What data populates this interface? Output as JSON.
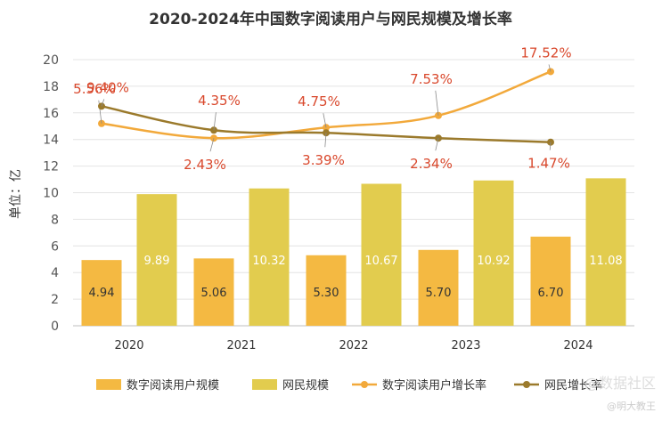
{
  "chart_data": {
    "type": "bar",
    "title": "2020-2024年中国数字阅读用户与网民规模及增长率",
    "ylabel": "单位：亿",
    "categories": [
      "2020",
      "2021",
      "2022",
      "2023",
      "2024"
    ],
    "ylim": [
      0,
      20
    ],
    "yticks": [
      0,
      2,
      4,
      6,
      8,
      10,
      12,
      14,
      16,
      18,
      20
    ],
    "grid": true,
    "legend_position": "bottom",
    "bar_series": [
      {
        "name": "数字阅读用户规模",
        "color": "#f4b942",
        "values": [
          4.94,
          5.06,
          5.3,
          5.7,
          6.7
        ],
        "labels": [
          "4.94",
          "5.06",
          "5.30",
          "5.70",
          "6.70"
        ],
        "label_color": "#333333"
      },
      {
        "name": "网民规模",
        "color": "#e2cc4e",
        "values": [
          9.89,
          10.32,
          10.67,
          10.92,
          11.08
        ],
        "labels": [
          "9.89",
          "10.32",
          "10.67",
          "10.92",
          "11.08"
        ],
        "label_color": "#ffffff"
      }
    ],
    "line_series": [
      {
        "name": "数字阅读用户增长率",
        "color": "#f2a93b",
        "plot_values": [
          15.2,
          14.1,
          14.9,
          15.8,
          19.1
        ],
        "labels": [
          "5.56%",
          "2.43%",
          "4.75%",
          "7.53%",
          "17.52%"
        ]
      },
      {
        "name": "网民增长率",
        "color": "#9b7a2c",
        "plot_values": [
          16.5,
          14.7,
          14.5,
          14.1,
          13.8
        ],
        "labels": [
          "9.40%",
          "4.35%",
          "3.39%",
          "2.34%",
          "1.47%"
        ]
      }
    ]
  },
  "watermark": {
    "main": "@数据社区",
    "sub": "@明大教王"
  }
}
